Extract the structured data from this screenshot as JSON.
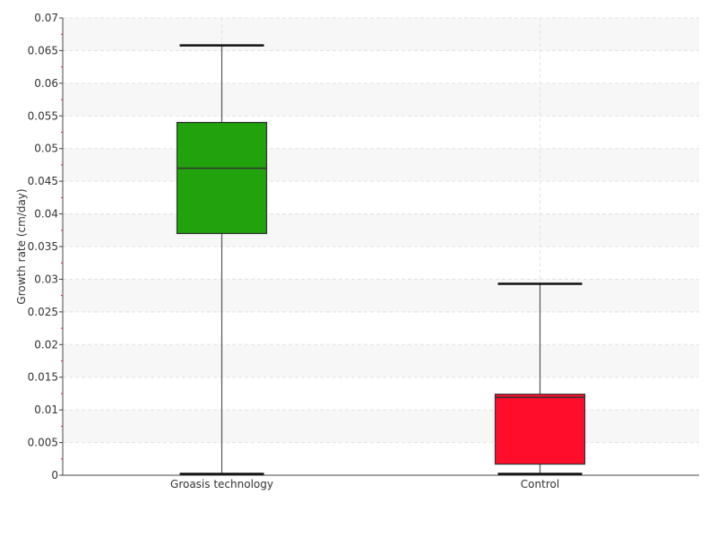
{
  "chart_data": {
    "type": "box",
    "ylabel": "Growth rate (cm/day)",
    "ylim": [
      0,
      0.07
    ],
    "y_ticks": [
      "0",
      "0.005",
      "0.01",
      "0.015",
      "0.02",
      "0.025",
      "0.03",
      "0.035",
      "0.04",
      "0.045",
      "0.05",
      "0.055",
      "0.06",
      "0.065",
      "0.07"
    ],
    "grid": true,
    "categories": [
      "Groasis technology",
      "Control"
    ],
    "boxes": [
      {
        "name": "Groasis technology",
        "color": "#22a20c",
        "min": 0.0002,
        "q1": 0.037,
        "median": 0.047,
        "q3": 0.054,
        "max": 0.0658
      },
      {
        "name": "Control",
        "color": "#ff0d2b",
        "min": 0.0002,
        "q1": 0.0017,
        "median": 0.0119,
        "q3": 0.0124,
        "max": 0.0293
      }
    ]
  }
}
